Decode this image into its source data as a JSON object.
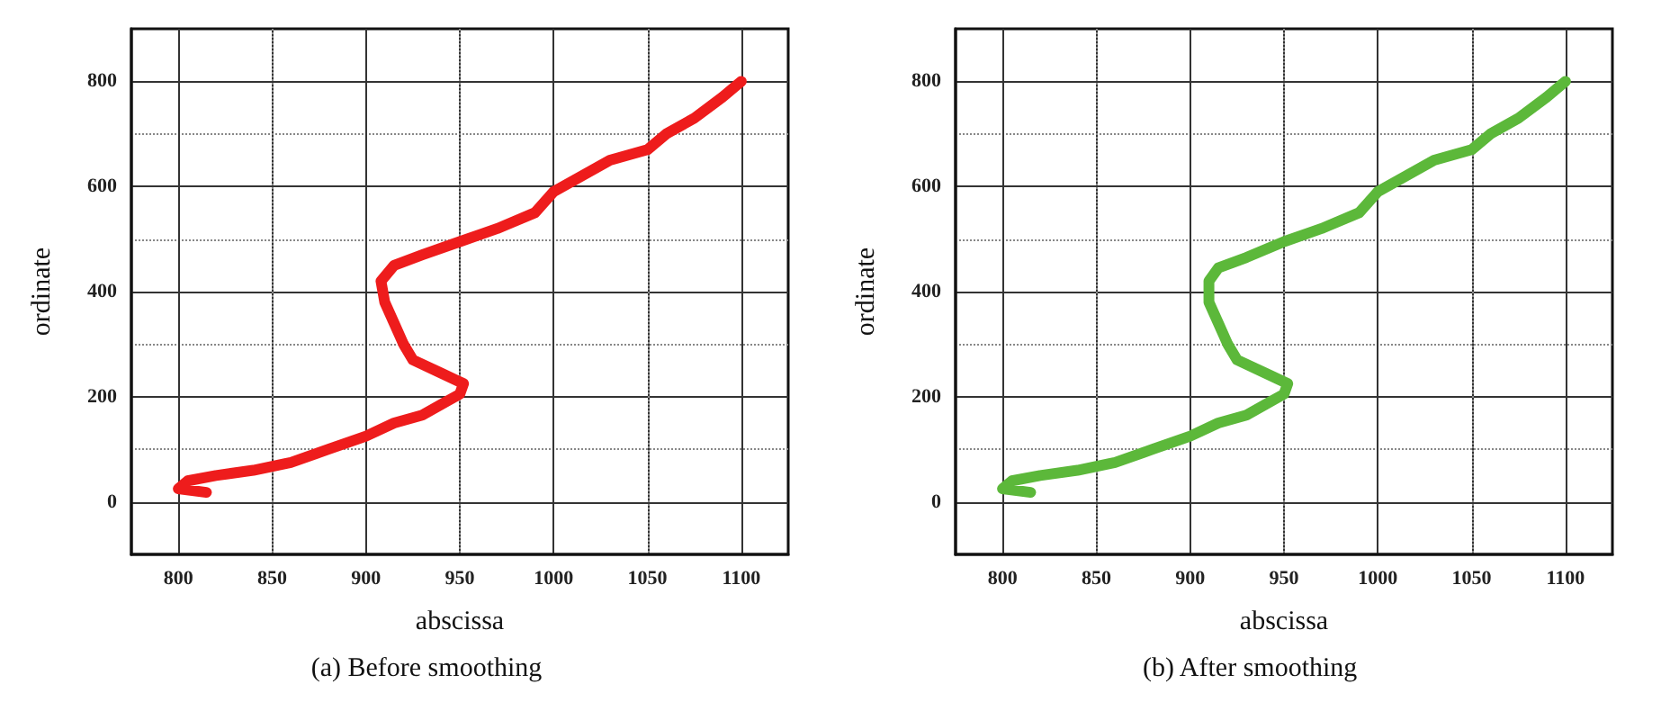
{
  "chart_data": [
    {
      "type": "line",
      "xlabel": "abscissa",
      "ylabel": "ordinate",
      "annotations": [
        "(a) Before smoothing"
      ],
      "xlim": [
        775,
        1125
      ],
      "xticks": [
        800,
        850,
        900,
        950,
        1000,
        1050,
        1100
      ],
      "ylim": [
        -100,
        900
      ],
      "yticks": [
        0,
        200,
        400,
        600,
        800
      ],
      "grid": true,
      "marker": "none",
      "line_style": "solid",
      "series": [
        {
          "color": "#ee1c1c",
          "x": [
            815,
            800,
            805,
            820,
            840,
            860,
            880,
            900,
            915,
            930,
            940,
            950,
            952,
            940,
            925,
            920,
            915,
            910,
            908,
            915,
            930,
            950,
            970,
            990,
            1000,
            1015,
            1030,
            1050,
            1060,
            1075,
            1090,
            1100
          ],
          "values": [
            18,
            25,
            40,
            50,
            60,
            75,
            100,
            125,
            150,
            165,
            185,
            205,
            225,
            245,
            270,
            300,
            340,
            380,
            420,
            450,
            470,
            495,
            520,
            550,
            590,
            620,
            650,
            670,
            700,
            730,
            770,
            800
          ]
        }
      ]
    },
    {
      "type": "line",
      "xlabel": "abscissa",
      "ylabel": "ordinate",
      "annotations": [
        "(b) After smoothing"
      ],
      "xlim": [
        775,
        1125
      ],
      "xticks": [
        800,
        850,
        900,
        950,
        1000,
        1050,
        1100
      ],
      "ylim": [
        -100,
        900
      ],
      "yticks": [
        0,
        200,
        400,
        600,
        800
      ],
      "grid": true,
      "marker": "none",
      "line_style": "solid",
      "series": [
        {
          "color": "#5cb83a",
          "x": [
            815,
            800,
            805,
            820,
            840,
            860,
            880,
            900,
            915,
            930,
            940,
            950,
            952,
            940,
            925,
            920,
            915,
            910,
            910,
            915,
            930,
            950,
            970,
            990,
            1000,
            1015,
            1030,
            1050,
            1060,
            1075,
            1090,
            1100
          ],
          "values": [
            18,
            25,
            40,
            50,
            60,
            75,
            100,
            125,
            150,
            165,
            185,
            205,
            225,
            245,
            270,
            300,
            340,
            380,
            420,
            445,
            465,
            495,
            520,
            550,
            590,
            620,
            650,
            670,
            700,
            730,
            770,
            800
          ]
        }
      ]
    }
  ]
}
